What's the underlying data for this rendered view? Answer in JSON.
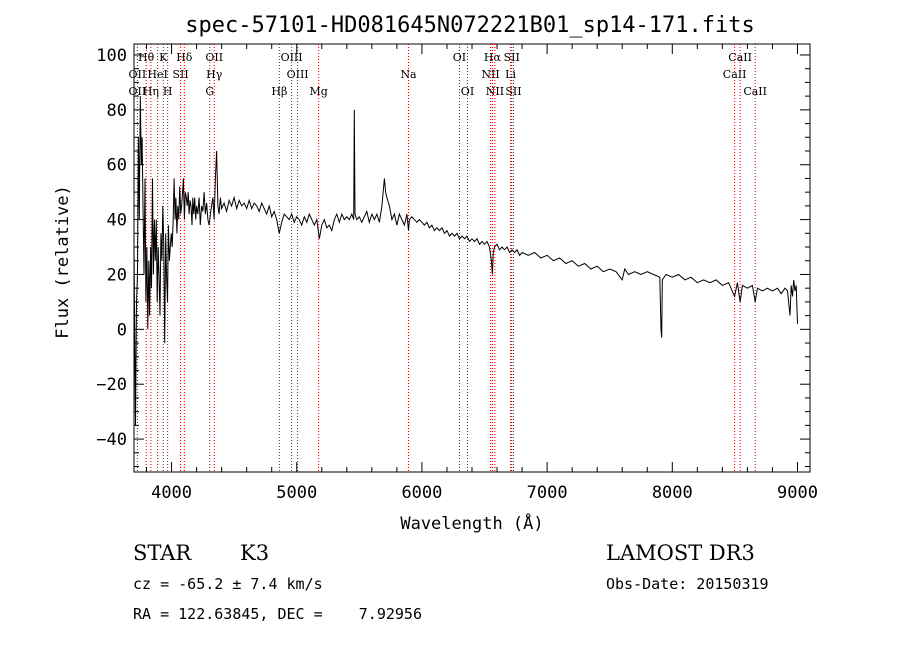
{
  "chart_data": {
    "type": "line",
    "title": "spec-57101-HD081645N072221B01_sp14-171.fits",
    "xlabel": "Wavelength (Å)",
    "ylabel": "Flux (relative)",
    "xlim": [
      3700,
      9100
    ],
    "ylim": [
      -52,
      104
    ],
    "xticks": [
      4000,
      5000,
      6000,
      7000,
      8000,
      9000
    ],
    "yticks": [
      -40,
      -20,
      0,
      20,
      40,
      60,
      80,
      100
    ],
    "series": [
      {
        "values": [
          [
            3700,
            30
          ],
          [
            3705,
            5
          ],
          [
            3712,
            -35
          ],
          [
            3720,
            10
          ],
          [
            3728,
            20
          ],
          [
            3735,
            70
          ],
          [
            3742,
            40
          ],
          [
            3750,
            85
          ],
          [
            3758,
            60
          ],
          [
            3765,
            70
          ],
          [
            3772,
            45
          ],
          [
            3780,
            20
          ],
          [
            3788,
            55
          ],
          [
            3795,
            10
          ],
          [
            3803,
            30
          ],
          [
            3810,
            0
          ],
          [
            3818,
            25
          ],
          [
            3825,
            5
          ],
          [
            3833,
            30
          ],
          [
            3840,
            15
          ],
          [
            3848,
            55
          ],
          [
            3855,
            20
          ],
          [
            3863,
            40
          ],
          [
            3870,
            25
          ],
          [
            3878,
            40
          ],
          [
            3885,
            10
          ],
          [
            3893,
            30
          ],
          [
            3900,
            20
          ],
          [
            3908,
            5
          ],
          [
            3915,
            35
          ],
          [
            3923,
            25
          ],
          [
            3930,
            45
          ],
          [
            3938,
            30
          ],
          [
            3945,
            -5
          ],
          [
            3953,
            35
          ],
          [
            3960,
            20
          ],
          [
            3968,
            10
          ],
          [
            3975,
            38
          ],
          [
            3983,
            25
          ],
          [
            3990,
            30
          ],
          [
            3998,
            35
          ],
          [
            4005,
            30
          ],
          [
            4013,
            40
          ],
          [
            4020,
            55
          ],
          [
            4028,
            40
          ],
          [
            4035,
            48
          ],
          [
            4043,
            35
          ],
          [
            4050,
            45
          ],
          [
            4058,
            40
          ],
          [
            4065,
            52
          ],
          [
            4073,
            42
          ],
          [
            4080,
            45
          ],
          [
            4088,
            50
          ],
          [
            4095,
            55
          ],
          [
            4103,
            40
          ],
          [
            4110,
            50
          ],
          [
            4118,
            48
          ],
          [
            4125,
            45
          ],
          [
            4133,
            50
          ],
          [
            4140,
            42
          ],
          [
            4148,
            47
          ],
          [
            4155,
            45
          ],
          [
            4163,
            38
          ],
          [
            4170,
            48
          ],
          [
            4178,
            42
          ],
          [
            4185,
            48
          ],
          [
            4193,
            40
          ],
          [
            4200,
            45
          ],
          [
            4210,
            42
          ],
          [
            4220,
            48
          ],
          [
            4230,
            38
          ],
          [
            4240,
            45
          ],
          [
            4250,
            43
          ],
          [
            4260,
            50
          ],
          [
            4270,
            42
          ],
          [
            4280,
            46
          ],
          [
            4290,
            40
          ],
          [
            4300,
            38
          ],
          [
            4310,
            42
          ],
          [
            4320,
            45
          ],
          [
            4330,
            48
          ],
          [
            4340,
            40
          ],
          [
            4350,
            55
          ],
          [
            4360,
            65
          ],
          [
            4370,
            45
          ],
          [
            4380,
            42
          ],
          [
            4390,
            48
          ],
          [
            4400,
            44
          ],
          [
            4420,
            46
          ],
          [
            4440,
            43
          ],
          [
            4460,
            47
          ],
          [
            4480,
            45
          ],
          [
            4500,
            48
          ],
          [
            4520,
            44
          ],
          [
            4540,
            47
          ],
          [
            4560,
            45
          ],
          [
            4580,
            46
          ],
          [
            4600,
            44
          ],
          [
            4620,
            47
          ],
          [
            4640,
            44
          ],
          [
            4660,
            46
          ],
          [
            4680,
            45
          ],
          [
            4700,
            43
          ],
          [
            4720,
            46
          ],
          [
            4740,
            44
          ],
          [
            4760,
            42
          ],
          [
            4780,
            45
          ],
          [
            4800,
            41
          ],
          [
            4820,
            43
          ],
          [
            4840,
            40
          ],
          [
            4860,
            35
          ],
          [
            4880,
            39
          ],
          [
            4900,
            42
          ],
          [
            4920,
            41
          ],
          [
            4940,
            40
          ],
          [
            4960,
            42
          ],
          [
            4980,
            39
          ],
          [
            5000,
            41
          ],
          [
            5020,
            40
          ],
          [
            5040,
            38
          ],
          [
            5060,
            41
          ],
          [
            5080,
            39
          ],
          [
            5100,
            42
          ],
          [
            5120,
            40
          ],
          [
            5140,
            38
          ],
          [
            5160,
            40
          ],
          [
            5180,
            33
          ],
          [
            5200,
            38
          ],
          [
            5220,
            40
          ],
          [
            5240,
            37
          ],
          [
            5260,
            38
          ],
          [
            5280,
            36
          ],
          [
            5300,
            40
          ],
          [
            5320,
            42
          ],
          [
            5340,
            39
          ],
          [
            5360,
            42
          ],
          [
            5380,
            40
          ],
          [
            5400,
            41
          ],
          [
            5420,
            40
          ],
          [
            5440,
            42
          ],
          [
            5455,
            40
          ],
          [
            5460,
            80
          ],
          [
            5465,
            42
          ],
          [
            5480,
            40
          ],
          [
            5500,
            41
          ],
          [
            5520,
            39
          ],
          [
            5540,
            41
          ],
          [
            5560,
            43
          ],
          [
            5580,
            39
          ],
          [
            5600,
            42
          ],
          [
            5620,
            40
          ],
          [
            5640,
            42
          ],
          [
            5660,
            39
          ],
          [
            5680,
            45
          ],
          [
            5700,
            55
          ],
          [
            5710,
            50
          ],
          [
            5720,
            48
          ],
          [
            5740,
            45
          ],
          [
            5760,
            40
          ],
          [
            5780,
            42
          ],
          [
            5800,
            38
          ],
          [
            5820,
            42
          ],
          [
            5840,
            40
          ],
          [
            5860,
            38
          ],
          [
            5880,
            42
          ],
          [
            5893,
            36
          ],
          [
            5900,
            40
          ],
          [
            5920,
            41
          ],
          [
            5940,
            40
          ],
          [
            5960,
            39
          ],
          [
            5980,
            40
          ],
          [
            6000,
            39
          ],
          [
            6020,
            38
          ],
          [
            6040,
            39
          ],
          [
            6060,
            37
          ],
          [
            6080,
            38
          ],
          [
            6100,
            36
          ],
          [
            6120,
            37
          ],
          [
            6140,
            36
          ],
          [
            6160,
            37
          ],
          [
            6180,
            35
          ],
          [
            6200,
            36
          ],
          [
            6220,
            34
          ],
          [
            6240,
            35
          ],
          [
            6260,
            34
          ],
          [
            6280,
            35
          ],
          [
            6300,
            33
          ],
          [
            6320,
            34
          ],
          [
            6340,
            33
          ],
          [
            6360,
            34
          ],
          [
            6380,
            32
          ],
          [
            6400,
            33
          ],
          [
            6420,
            32
          ],
          [
            6440,
            33
          ],
          [
            6460,
            31
          ],
          [
            6480,
            32
          ],
          [
            6500,
            31
          ],
          [
            6520,
            32
          ],
          [
            6540,
            30
          ],
          [
            6555,
            25
          ],
          [
            6563,
            20
          ],
          [
            6570,
            28
          ],
          [
            6580,
            30
          ],
          [
            6600,
            31
          ],
          [
            6620,
            29
          ],
          [
            6640,
            30
          ],
          [
            6660,
            29
          ],
          [
            6680,
            30
          ],
          [
            6700,
            28
          ],
          [
            6720,
            29
          ],
          [
            6740,
            28
          ],
          [
            6760,
            29
          ],
          [
            6780,
            27
          ],
          [
            6800,
            28
          ],
          [
            6850,
            27
          ],
          [
            6900,
            28
          ],
          [
            6950,
            26
          ],
          [
            7000,
            27
          ],
          [
            7050,
            25
          ],
          [
            7100,
            26
          ],
          [
            7150,
            24
          ],
          [
            7200,
            25
          ],
          [
            7250,
            23
          ],
          [
            7300,
            24
          ],
          [
            7350,
            22
          ],
          [
            7400,
            23
          ],
          [
            7450,
            21
          ],
          [
            7500,
            22
          ],
          [
            7550,
            21
          ],
          [
            7600,
            18
          ],
          [
            7620,
            22
          ],
          [
            7650,
            20
          ],
          [
            7700,
            21
          ],
          [
            7750,
            20
          ],
          [
            7800,
            21
          ],
          [
            7850,
            20
          ],
          [
            7900,
            19
          ],
          [
            7910,
            0
          ],
          [
            7915,
            -3
          ],
          [
            7920,
            18
          ],
          [
            7950,
            20
          ],
          [
            8000,
            19
          ],
          [
            8050,
            20
          ],
          [
            8100,
            18
          ],
          [
            8150,
            19
          ],
          [
            8200,
            17
          ],
          [
            8250,
            18
          ],
          [
            8300,
            17
          ],
          [
            8350,
            18
          ],
          [
            8400,
            16
          ],
          [
            8450,
            17
          ],
          [
            8498,
            12
          ],
          [
            8520,
            17
          ],
          [
            8542,
            10
          ],
          [
            8560,
            16
          ],
          [
            8600,
            15
          ],
          [
            8640,
            16
          ],
          [
            8662,
            10
          ],
          [
            8680,
            15
          ],
          [
            8720,
            14
          ],
          [
            8760,
            15
          ],
          [
            8800,
            14
          ],
          [
            8840,
            15
          ],
          [
            8870,
            13
          ],
          [
            8900,
            15
          ],
          [
            8920,
            14
          ],
          [
            8940,
            5
          ],
          [
            8950,
            16
          ],
          [
            8960,
            12
          ],
          [
            8970,
            18
          ],
          [
            8980,
            14
          ],
          [
            8990,
            16
          ],
          [
            9000,
            2
          ]
        ]
      }
    ],
    "line_markers_top": [
      {
        "label": "Hθ",
        "x": 3797
      },
      {
        "label": "K",
        "x": 3934
      },
      {
        "label": "Hδ",
        "x": 4102
      },
      {
        "label": "OII",
        "x": 4341
      },
      {
        "label": "OIII",
        "x": 4959
      },
      {
        "label": "OI",
        "x": 6300
      },
      {
        "label": "Hα",
        "x": 6563
      },
      {
        "label": "SII",
        "x": 6717
      },
      {
        "label": "CaII",
        "x": 8542
      }
    ],
    "line_markers_mid": [
      {
        "label": "OII",
        "x": 3727
      },
      {
        "label": "HeI",
        "x": 3889
      },
      {
        "label": "SII",
        "x": 4072
      },
      {
        "label": "Hγ",
        "x": 4341
      },
      {
        "label": "OIII",
        "x": 5007
      },
      {
        "label": "Na",
        "x": 5893
      },
      {
        "label": "NII",
        "x": 6548
      },
      {
        "label": "Li",
        "x": 6708
      },
      {
        "label": "CaII",
        "x": 8498
      }
    ],
    "line_markers_low": [
      {
        "label": "OII",
        "x": 3727
      },
      {
        "label": "Hη",
        "x": 3835
      },
      {
        "label": "H",
        "x": 3969
      },
      {
        "label": "G",
        "x": 4305
      },
      {
        "label": "Hβ",
        "x": 4861
      },
      {
        "label": "Mg",
        "x": 5175
      },
      {
        "label": "OI",
        "x": 6364
      },
      {
        "label": "NII",
        "x": 6583
      },
      {
        "label": "SII",
        "x": 6731
      },
      {
        "label": "CaII",
        "x": 8662
      }
    ],
    "marker_lines": [
      3727,
      3797,
      3835,
      3889,
      3934,
      3969,
      4072,
      4102,
      4305,
      4341,
      4861,
      4959,
      5007,
      5175,
      5893,
      6300,
      6364,
      6548,
      6563,
      6583,
      6708,
      6717,
      6731,
      8498,
      8542,
      8662
    ],
    "marker_color": "#cc0000",
    "line_color": "#000000",
    "grid": false
  },
  "info": {
    "object_class": "STAR",
    "subclass": "K3",
    "survey": "LAMOST DR3",
    "cz": "cz = -65.2 ± 7.4 km/s",
    "obs_date": "Obs-Date: 20150319",
    "radec": "RA = 122.63845, DEC =    7.92956"
  }
}
